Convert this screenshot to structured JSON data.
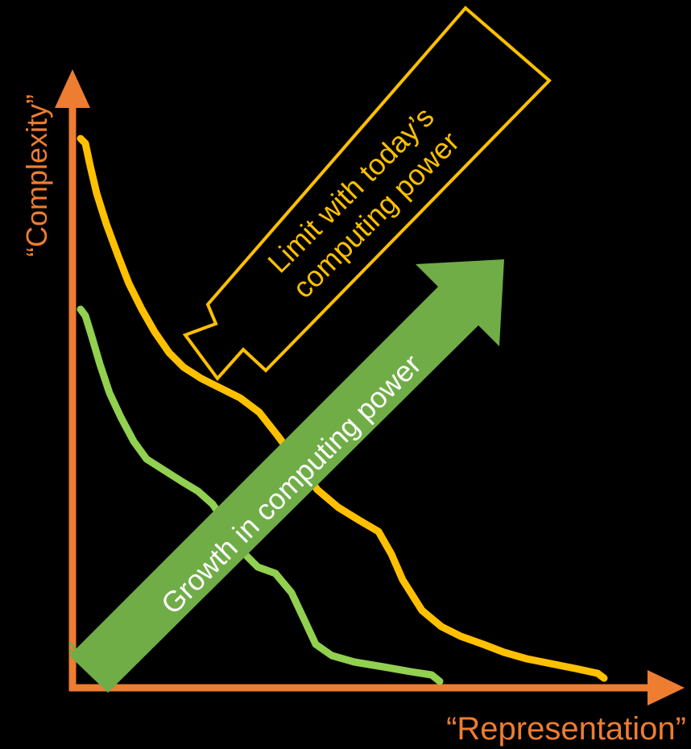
{
  "diagram": {
    "y_axis_label": "“Complexity”",
    "x_axis_label": "“Representation”",
    "limit_callout": {
      "line1": "Limit with today’s",
      "line2": "computing power"
    },
    "growth_arrow_label": "Growth in computing power",
    "colors": {
      "background": "#000000",
      "axis": "#ed7d31",
      "limit_curve": "#ffc000",
      "current_curve": "#92d050",
      "growth_arrow": "#70ad47",
      "text_on_arrow": "#ffffff"
    }
  }
}
